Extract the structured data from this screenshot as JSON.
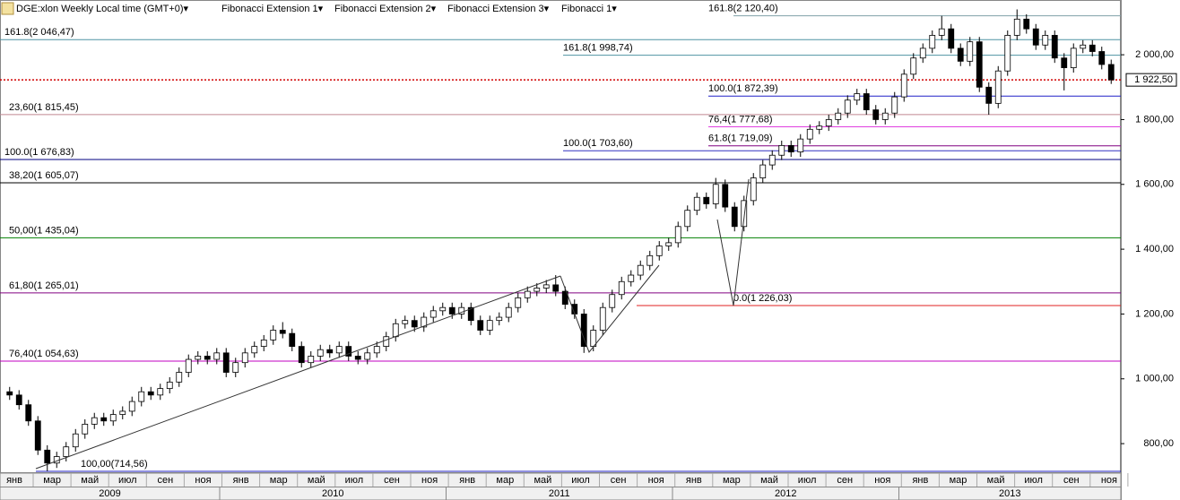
{
  "chart_data": {
    "type": "candlestick",
    "header": [
      "DGE:xlon Weekly Local time (GMT+0)▾",
      "Fibonacci Extension 1▾",
      "Fibonacci Extension 2▾",
      "Fibonacci Extension 3▾",
      "Fibonacci 1▾"
    ],
    "ylim": [
      709,
      2169
    ],
    "yticks": [
      {
        "value": 800,
        "label": "800,00"
      },
      {
        "value": 1000,
        "label": "1 000,00"
      },
      {
        "value": 1200,
        "label": "1 200,00"
      },
      {
        "value": 1400,
        "label": "1 400,00"
      },
      {
        "value": 1600,
        "label": "1 600,00"
      },
      {
        "value": 1800,
        "label": "1 800,00"
      },
      {
        "value": 2000,
        "label": "2 000,00"
      }
    ],
    "last_price": {
      "value": 1922.5,
      "label": "1 922,50",
      "color": "#d00000"
    },
    "months": [
      "янв",
      "мар",
      "май",
      "июл",
      "сен",
      "ноя",
      "янв",
      "мар",
      "май",
      "июл",
      "сен",
      "ноя",
      "янв",
      "мар",
      "май",
      "июл",
      "сен",
      "ноя",
      "янв",
      "мар",
      "май",
      "июл",
      "сен",
      "ноя",
      "янв",
      "мар",
      "май",
      "июл",
      "сен",
      "ноя"
    ],
    "years": [
      "2009",
      "2010",
      "2011",
      "2012",
      "2013"
    ],
    "levels": [
      {
        "label": "161.8(2 120,40)",
        "value": 2120.4,
        "color": "#7fa0a8"
      },
      {
        "label": "161.8(2 046,47)",
        "value": 2046.47,
        "color": "#4f93a3"
      },
      {
        "label": "161.8(1 998,74)",
        "value": 1998.74,
        "color": "#4f93a3"
      },
      {
        "label": "100.0(1 872,39)",
        "value": 1872.39,
        "color": "#2020c8"
      },
      {
        "label": "23,60(1 815,45)",
        "value": 1815.45,
        "color": "#c08890"
      },
      {
        "label": "76,4(1 777,68)",
        "value": 1777.68,
        "color": "#e040e0"
      },
      {
        "label": "61.8(1 719,09)",
        "value": 1719.09,
        "color": "#800080"
      },
      {
        "label": "100.0(1 703,60)",
        "value": 1703.6,
        "color": "#3030c0"
      },
      {
        "label": "100.0(1 676,83)",
        "value": 1676.83,
        "color": "#000080"
      },
      {
        "label": "38,20(1 605,07)",
        "value": 1605.07,
        "color": "#000000"
      },
      {
        "label": "50,00(1 435,04)",
        "value": 1435.04,
        "color": "#008000"
      },
      {
        "label": "61,80(1 265,01)",
        "value": 1265.01,
        "color": "#800080"
      },
      {
        "label": "0.0(1 226,03)",
        "value": 1226.03,
        "color": "#e02020"
      },
      {
        "label": "76,40(1 054,63)",
        "value": 1054.63,
        "color": "#c000c0"
      },
      {
        "label": "100,00(714,56)",
        "value": 714.56,
        "color": "#2020c0"
      }
    ],
    "candles": [
      [
        960,
        975,
        935,
        950
      ],
      [
        950,
        965,
        905,
        920
      ],
      [
        920,
        935,
        855,
        870
      ],
      [
        870,
        885,
        765,
        780
      ],
      [
        780,
        795,
        715,
        740
      ],
      [
        740,
        775,
        725,
        760
      ],
      [
        760,
        805,
        745,
        790
      ],
      [
        790,
        845,
        775,
        830
      ],
      [
        830,
        875,
        815,
        860
      ],
      [
        860,
        895,
        845,
        880
      ],
      [
        880,
        895,
        855,
        870
      ],
      [
        870,
        905,
        855,
        890
      ],
      [
        890,
        915,
        875,
        900
      ],
      [
        900,
        945,
        885,
        930
      ],
      [
        930,
        975,
        915,
        960
      ],
      [
        960,
        975,
        935,
        950
      ],
      [
        950,
        985,
        935,
        970
      ],
      [
        970,
        1005,
        955,
        990
      ],
      [
        990,
        1035,
        975,
        1020
      ],
      [
        1020,
        1075,
        1005,
        1060
      ],
      [
        1060,
        1085,
        1045,
        1070
      ],
      [
        1070,
        1085,
        1045,
        1060
      ],
      [
        1060,
        1095,
        1045,
        1080
      ],
      [
        1080,
        1095,
        1005,
        1020
      ],
      [
        1020,
        1065,
        1005,
        1050
      ],
      [
        1050,
        1095,
        1035,
        1080
      ],
      [
        1080,
        1115,
        1065,
        1100
      ],
      [
        1100,
        1135,
        1085,
        1120
      ],
      [
        1120,
        1165,
        1105,
        1150
      ],
      [
        1150,
        1175,
        1125,
        1140
      ],
      [
        1140,
        1155,
        1085,
        1100
      ],
      [
        1100,
        1115,
        1035,
        1050
      ],
      [
        1050,
        1085,
        1035,
        1070
      ],
      [
        1070,
        1105,
        1055,
        1090
      ],
      [
        1090,
        1105,
        1065,
        1080
      ],
      [
        1080,
        1115,
        1065,
        1100
      ],
      [
        1100,
        1115,
        1055,
        1070
      ],
      [
        1070,
        1085,
        1045,
        1060
      ],
      [
        1060,
        1095,
        1045,
        1080
      ],
      [
        1080,
        1115,
        1065,
        1100
      ],
      [
        1100,
        1145,
        1085,
        1130
      ],
      [
        1130,
        1185,
        1115,
        1170
      ],
      [
        1170,
        1195,
        1155,
        1180
      ],
      [
        1180,
        1195,
        1145,
        1160
      ],
      [
        1160,
        1205,
        1145,
        1190
      ],
      [
        1190,
        1225,
        1175,
        1210
      ],
      [
        1210,
        1235,
        1195,
        1220
      ],
      [
        1220,
        1235,
        1185,
        1200
      ],
      [
        1200,
        1235,
        1185,
        1220
      ],
      [
        1220,
        1235,
        1165,
        1180
      ],
      [
        1180,
        1195,
        1135,
        1150
      ],
      [
        1150,
        1195,
        1135,
        1180
      ],
      [
        1180,
        1205,
        1165,
        1190
      ],
      [
        1190,
        1235,
        1175,
        1220
      ],
      [
        1220,
        1265,
        1205,
        1250
      ],
      [
        1250,
        1285,
        1235,
        1270
      ],
      [
        1270,
        1295,
        1255,
        1280
      ],
      [
        1280,
        1305,
        1265,
        1290
      ],
      [
        1290,
        1320,
        1255,
        1270
      ],
      [
        1270,
        1285,
        1215,
        1230
      ],
      [
        1230,
        1245,
        1185,
        1200
      ],
      [
        1200,
        1215,
        1080,
        1100
      ],
      [
        1100,
        1165,
        1085,
        1150
      ],
      [
        1150,
        1235,
        1135,
        1220
      ],
      [
        1220,
        1275,
        1205,
        1260
      ],
      [
        1260,
        1315,
        1245,
        1300
      ],
      [
        1300,
        1335,
        1285,
        1320
      ],
      [
        1320,
        1365,
        1305,
        1350
      ],
      [
        1350,
        1395,
        1335,
        1380
      ],
      [
        1380,
        1425,
        1365,
        1410
      ],
      [
        1410,
        1435,
        1395,
        1420
      ],
      [
        1420,
        1485,
        1405,
        1470
      ],
      [
        1470,
        1535,
        1455,
        1520
      ],
      [
        1520,
        1575,
        1505,
        1560
      ],
      [
        1560,
        1575,
        1525,
        1540
      ],
      [
        1540,
        1620,
        1525,
        1600
      ],
      [
        1600,
        1615,
        1515,
        1530
      ],
      [
        1530,
        1545,
        1455,
        1470
      ],
      [
        1470,
        1565,
        1455,
        1550
      ],
      [
        1550,
        1635,
        1535,
        1620
      ],
      [
        1620,
        1675,
        1605,
        1660
      ],
      [
        1660,
        1705,
        1645,
        1690
      ],
      [
        1690,
        1735,
        1675,
        1720
      ],
      [
        1720,
        1735,
        1685,
        1700
      ],
      [
        1700,
        1755,
        1685,
        1740
      ],
      [
        1740,
        1785,
        1725,
        1770
      ],
      [
        1770,
        1795,
        1755,
        1780
      ],
      [
        1780,
        1815,
        1765,
        1800
      ],
      [
        1800,
        1835,
        1785,
        1820
      ],
      [
        1820,
        1875,
        1805,
        1860
      ],
      [
        1860,
        1895,
        1845,
        1880
      ],
      [
        1880,
        1895,
        1815,
        1830
      ],
      [
        1830,
        1845,
        1785,
        1800
      ],
      [
        1800,
        1835,
        1785,
        1820
      ],
      [
        1820,
        1885,
        1805,
        1870
      ],
      [
        1870,
        1955,
        1855,
        1940
      ],
      [
        1940,
        2005,
        1925,
        1990
      ],
      [
        1990,
        2035,
        1975,
        2020
      ],
      [
        2020,
        2075,
        2005,
        2060
      ],
      [
        2060,
        2120,
        2045,
        2080
      ],
      [
        2080,
        2095,
        2005,
        2020
      ],
      [
        2020,
        2035,
        1965,
        1980
      ],
      [
        1980,
        2055,
        1965,
        2040
      ],
      [
        2040,
        2055,
        1885,
        1900
      ],
      [
        1900,
        1915,
        1815,
        1850
      ],
      [
        1850,
        1965,
        1835,
        1950
      ],
      [
        1950,
        2075,
        1935,
        2060
      ],
      [
        2060,
        2140,
        2045,
        2110
      ],
      [
        2110,
        2125,
        2065,
        2080
      ],
      [
        2080,
        2095,
        2015,
        2030
      ],
      [
        2030,
        2075,
        2015,
        2060
      ],
      [
        2060,
        2075,
        1975,
        1990
      ],
      [
        1990,
        2005,
        1890,
        1960
      ],
      [
        1960,
        2035,
        1945,
        2020
      ],
      [
        2020,
        2045,
        2005,
        2030
      ],
      [
        2030,
        2045,
        1995,
        2010
      ],
      [
        2010,
        2025,
        1955,
        1970
      ],
      [
        1970,
        1985,
        1910,
        1922.5
      ]
    ]
  }
}
